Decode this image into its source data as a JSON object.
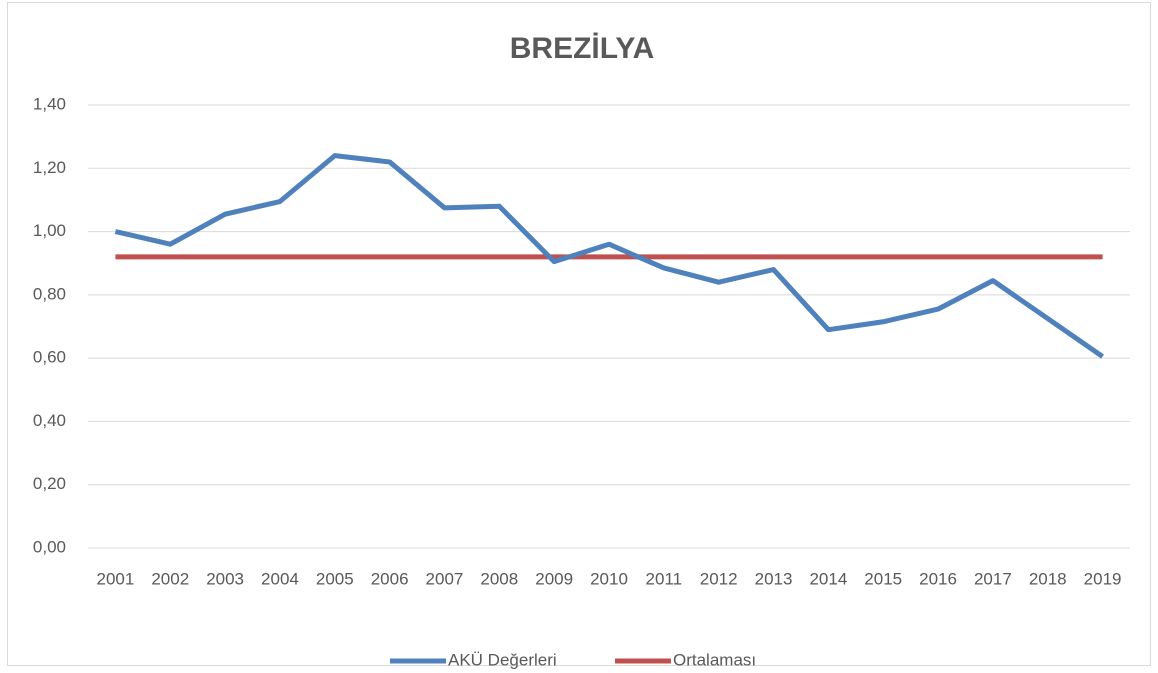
{
  "chart_data": {
    "type": "line",
    "title": "BREZİLYA",
    "categories": [
      "2001",
      "2002",
      "2003",
      "2004",
      "2005",
      "2006",
      "2007",
      "2008",
      "2009",
      "2010",
      "2011",
      "2012",
      "2013",
      "2014",
      "2015",
      "2016",
      "2017",
      "2018",
      "2019"
    ],
    "series": [
      {
        "name": "AKÜ Değerleri",
        "color": "#4f81bd",
        "values": [
          1.0,
          0.96,
          1.055,
          1.095,
          1.24,
          1.22,
          1.075,
          1.08,
          0.905,
          0.96,
          0.885,
          0.84,
          0.88,
          0.69,
          0.715,
          0.755,
          0.845,
          0.725,
          0.605
        ]
      },
      {
        "name": "Ortalaması",
        "color": "#c0504d",
        "values": [
          0.92,
          0.92,
          0.92,
          0.92,
          0.92,
          0.92,
          0.92,
          0.92,
          0.92,
          0.92,
          0.92,
          0.92,
          0.92,
          0.92,
          0.92,
          0.92,
          0.92,
          0.92,
          0.92
        ]
      }
    ],
    "ylim": [
      0,
      1.4
    ],
    "yticks": [
      {
        "value": 0,
        "label": "0,00"
      },
      {
        "value": 0.2,
        "label": "0,20"
      },
      {
        "value": 0.4,
        "label": "0,40"
      },
      {
        "value": 0.6,
        "label": "0,60"
      },
      {
        "value": 0.8,
        "label": "0,80"
      },
      {
        "value": 1.0,
        "label": "1,00"
      },
      {
        "value": 1.2,
        "label": "1,20"
      },
      {
        "value": 1.4,
        "label": "1,40"
      }
    ],
    "grid": true,
    "legend": "bottom"
  }
}
